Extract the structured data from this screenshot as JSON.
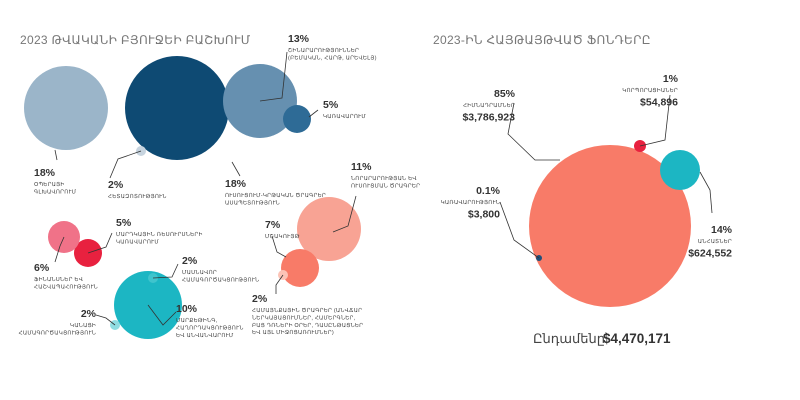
{
  "chart_data": [
    {
      "type": "bubble",
      "title": "2023 ԹՎԱԿԱՆԻ ԲՅՈՒՋԵԻ ԲԱՇԽՈՒՄ",
      "series": [
        {
          "name": "",
          "value": 18,
          "pct_label": "18%",
          "label_lines": [
            "ՕՊԵՐԱՅԻ",
            "ԳԼԽԱՎՈՐՈՒՄ"
          ],
          "color": "#9bb5c9"
        },
        {
          "name": "",
          "value": 18,
          "pct_label": "18%",
          "label_lines": [
            "ՈՒՍՈՒՑՈՒՄ-ԿՐԹԱԿԱՆ ԾՐԱԳՐԵՐ",
            "ԱՍԱՊԵՏՈՒԹՅՈՒՆ"
          ],
          "color": "#0e4a73"
        },
        {
          "name": "",
          "value": 13,
          "pct_label": "13%",
          "label_lines": [
            "ՇԻՆԱՐԱՐՈՒԹՅՈՒՆՆԵՐ",
            "(ԲԵՄԱԿԱՆ, ՀԱՐԹ, ԱՐԵՎԵԼՅ)"
          ],
          "color": "#6690b0"
        },
        {
          "name": "",
          "value": 5,
          "pct_label": "5%",
          "label_lines": [
            "ԿԱՌԱՎԱՐՈՒՄ"
          ],
          "color": "#2e6b96"
        },
        {
          "name": "",
          "value": 2,
          "pct_label": "2%",
          "label_lines": [
            "ՀԵՏԱԶՈՏՈՒԹՅՈՒՆ"
          ],
          "color": "#c7d4df"
        },
        {
          "name": "",
          "value": 11,
          "pct_label": "11%",
          "label_lines": [
            "ՆՈՐԱՐԱՐՈՒԹՅԱՆ ԵՎ",
            "ՈՒՍՈՒՑՄԱՆ ԾՐԱԳՐԵՐ"
          ],
          "color": "#f8a394"
        },
        {
          "name": "",
          "value": 7,
          "pct_label": "7%",
          "label_lines": [
            "ՄՇԱԿՈՒՅԹ"
          ],
          "color": "#f87b68"
        },
        {
          "name": "",
          "value": 2,
          "pct_label": "2%",
          "label_lines": [
            "ՀԱՄԱՅՆՔԱՅԻՆ ԾՐԱԳՐԵՐ (ԱՆՎՃԱՐ",
            "ՆԵՐԿԱՅԱՑՈՒՄՆԵՐ, ՀԱՄԵՐԳՆԵՐ,",
            "ԲԱՑ ԴՌՆԵՐԻ ՕՐԵՐ, ԴԱՍԸՆԹԱՑՆԵՐ",
            "ԵՎ ԱՅԼ ՄԻՋՈՑԱՌՈՒՄՆԵՐ)"
          ],
          "color": "#fcc3b6"
        },
        {
          "name": "",
          "value": 5,
          "pct_label": "5%",
          "label_lines": [
            "ՄԱՐԴԿԱՅԻՆ ՌԵՍՈՒՐՍՆԵՐԻ",
            "ԿԱՌԱՎԱՐՈՒՄ"
          ],
          "color": "#e8213f"
        },
        {
          "name": "",
          "value": 6,
          "pct_label": "6%",
          "label_lines": [
            "ՖԻՆԱՆՍՆԵՐ ԵՎ",
            "ՀԱՇՎԱՊԱՀՈՒԹՅՈՒՆ"
          ],
          "color": "#f07288"
        },
        {
          "name": "",
          "value": 10,
          "pct_label": "10%",
          "label_lines": [
            "ՄԱՐՔԵԹԻՆԳ,",
            "ՀԱՂՈՐԴԱԿՑՈՒԹՅՈՒՆ",
            "ԵՎ ԱՆՎԱՆՎԱՐՈՒՄ"
          ],
          "color": "#1cb6c3"
        },
        {
          "name": "",
          "value": 2,
          "pct_label": "2%",
          "label_lines": [
            "ՄԱՍՆԱՎՈՐ",
            "ՀԱՄԱԳՈՐԾԱԿՑՈՒԹՅՈՒՆ"
          ],
          "color": "#3fc4cd"
        },
        {
          "name": "",
          "value": 2,
          "pct_label": "2%",
          "label_lines": [
            "ԿԱՆԱՑԻ",
            "ՀԱՄԱԳՈՐԾԱԿՑՈՒԹՅՈՒՆ"
          ],
          "color": "#8fdde2"
        }
      ]
    },
    {
      "type": "bubble",
      "title": "2023-ԻՆ ՀԱՅԹԱՅԹՎԱԾ ՖՈՆԴԵՐԸ",
      "series": [
        {
          "name": "",
          "value": 3786923,
          "pct_label": "85%",
          "label_lines": [
            "ՀԻՄՆԱԴՐԱՄՆԵՐ"
          ],
          "amount_label": "$3,786,923",
          "color": "#f87b68"
        },
        {
          "name": "",
          "value": 624552,
          "pct_label": "14%",
          "label_lines": [
            "ԱՆՀԱՏՆԵՐ"
          ],
          "amount_label": "$624,552",
          "color": "#1cb6c3"
        },
        {
          "name": "",
          "value": 54896,
          "pct_label": "1%",
          "label_lines": [
            "ԿՈՐՊՈՐԱՑԻԱՆԵՐ"
          ],
          "amount_label": "$54,896",
          "color": "#e8213f"
        },
        {
          "name": "",
          "value": 3800,
          "pct_label": "0.1%",
          "label_lines": [
            "ԿԱՌԱՎԱՐՈՒԹՅՈՒՆ"
          ],
          "amount_label": "$3,800",
          "color": "#1f4f7a"
        }
      ],
      "total_label": "Ընդամենը՝",
      "total_value": "$4,470,171"
    }
  ]
}
